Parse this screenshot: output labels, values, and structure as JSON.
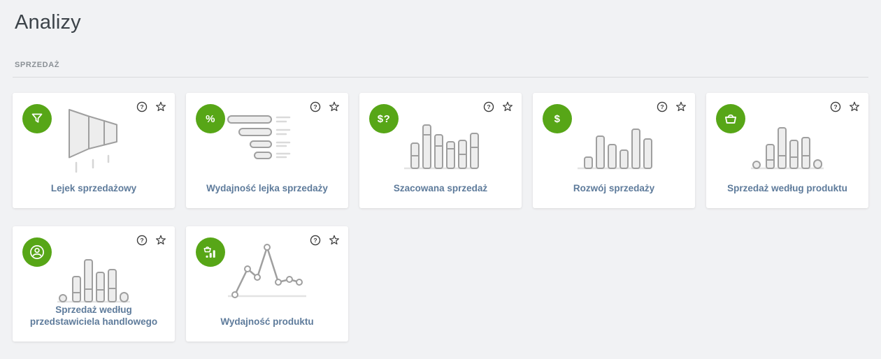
{
  "page": {
    "title": "Analizy"
  },
  "section": {
    "label": "SPRZEDAŻ"
  },
  "colors": {
    "accent_green": "#57a617",
    "card_title_blue": "#5e7b9b",
    "page_background": "#f1f2f4",
    "illustration_stroke": "#9f9f9f",
    "illustration_fill": "#ededed",
    "action_icon_dark": "#3a3a3a",
    "section_label_gray": "#8a9095"
  },
  "card_actions": {
    "help_icon": "question-mark-icon",
    "favorite_icon": "star-icon"
  },
  "cards": [
    {
      "id": "lejek-sprzedazowy",
      "title": "Lejek sprzedażowy",
      "badge_icon": "funnel",
      "illustration": "funnel"
    },
    {
      "id": "wydajnosc-lejka-sprzedazy",
      "title": "Wydajność lejka sprzedaży",
      "badge_text": "%",
      "illustration": "hbars"
    },
    {
      "id": "szacowana-sprzedaz",
      "title": "Szacowana sprzedaż",
      "badge_text": "$?",
      "illustration": "bars-estimated"
    },
    {
      "id": "rozwoj-sprzedazy",
      "title": "Rozwój sprzedaży",
      "badge_text": "$",
      "illustration": "bars-growth"
    },
    {
      "id": "sprzedaz-wedlug-produktu",
      "title": "Sprzedaż według produktu",
      "badge_icon": "basket",
      "illustration": "bars-product"
    },
    {
      "id": "sprzedaz-wedlug-przedstawiciela-handlowego",
      "title": "Sprzedaż według przedstawiciela handlowego",
      "badge_icon": "user",
      "illustration": "bars-rep"
    },
    {
      "id": "wydajnosc-produktu",
      "title": "Wydajność produktu",
      "badge_icon": "basket-chart",
      "illustration": "line"
    }
  ]
}
